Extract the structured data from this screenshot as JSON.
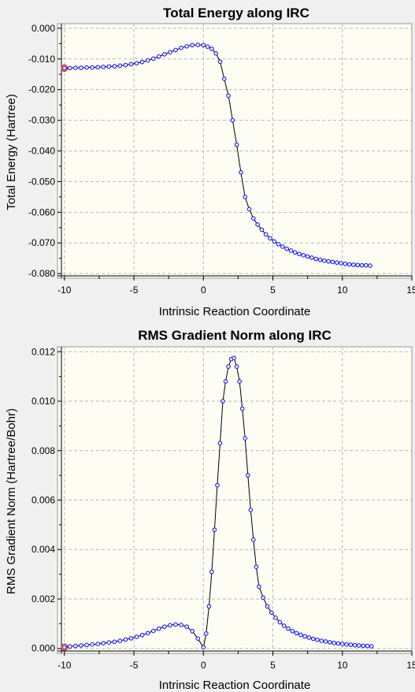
{
  "chart_data": [
    {
      "type": "line",
      "title": "Total Energy along IRC",
      "xlabel": "Intrinsic Reaction Coordinate",
      "ylabel": "Total Energy (Hartree)",
      "xlim": [
        -10.5,
        15
      ],
      "ylim": [
        -0.0815,
        0.0015
      ],
      "x_ticks": [
        -10,
        -5,
        0,
        5,
        10,
        15
      ],
      "y_ticks": [
        0.0,
        -0.01,
        -0.02,
        -0.03,
        -0.04,
        -0.05,
        -0.06,
        -0.07,
        -0.08
      ],
      "x_tick_labels": [
        "-10",
        "-5",
        "0",
        "5",
        "10",
        "15"
      ],
      "y_tick_labels": [
        "0.000",
        "-0.010",
        "-0.020",
        "-0.030",
        "-0.040",
        "-0.050",
        "-0.060",
        "-0.070",
        "-0.080"
      ],
      "grid": true,
      "highlighted_point": {
        "x": -10.0,
        "y": -0.013
      },
      "series": [
        {
          "x": [
            -10.0,
            -9.6,
            -9.2,
            -8.8,
            -8.4,
            -8.0,
            -7.6,
            -7.2,
            -6.8,
            -6.4,
            -6.0,
            -5.6,
            -5.2,
            -4.8,
            -4.4,
            -4.0,
            -3.6,
            -3.2,
            -2.8,
            -2.4,
            -2.0,
            -1.6,
            -1.2,
            -0.8,
            -0.4,
            0.0,
            0.3,
            0.6,
            0.9,
            1.2,
            1.5,
            1.8,
            2.1,
            2.4,
            2.7,
            3.0,
            3.3,
            3.6,
            3.9,
            4.2,
            4.5,
            4.8,
            5.1,
            5.4,
            5.7,
            6.0,
            6.3,
            6.6,
            6.9,
            7.2,
            7.5,
            7.8,
            8.1,
            8.4,
            8.7,
            9.0,
            9.3,
            9.6,
            9.9,
            10.2,
            10.5,
            10.8,
            11.1,
            11.4,
            11.7,
            12.0
          ],
          "y": [
            -0.013,
            -0.013,
            -0.0129,
            -0.0129,
            -0.0128,
            -0.0128,
            -0.0127,
            -0.0126,
            -0.0125,
            -0.0124,
            -0.0122,
            -0.012,
            -0.0117,
            -0.0114,
            -0.011,
            -0.0105,
            -0.0099,
            -0.0092,
            -0.0085,
            -0.0078,
            -0.0071,
            -0.0064,
            -0.0059,
            -0.0055,
            -0.0054,
            -0.0055,
            -0.006,
            -0.0067,
            -0.0082,
            -0.0109,
            -0.0165,
            -0.022,
            -0.03,
            -0.038,
            -0.047,
            -0.055,
            -0.059,
            -0.062,
            -0.064,
            -0.0657,
            -0.0672,
            -0.0685,
            -0.0695,
            -0.0704,
            -0.0712,
            -0.0719,
            -0.0725,
            -0.0731,
            -0.0736,
            -0.074,
            -0.0744,
            -0.0748,
            -0.0752,
            -0.0755,
            -0.0758,
            -0.076,
            -0.0762,
            -0.0764,
            -0.0766,
            -0.0768,
            -0.077,
            -0.0771,
            -0.0772,
            -0.0773,
            -0.0773,
            -0.0774
          ]
        }
      ]
    },
    {
      "type": "line",
      "title": "RMS Gradient Norm along IRC",
      "xlabel": "Intrinsic Reaction Coordinate",
      "ylabel": "RMS Gradient Norm (Hartree/Bohr)",
      "xlim": [
        -10.5,
        15
      ],
      "ylim": [
        -0.0002,
        0.0122
      ],
      "x_ticks": [
        -10,
        -5,
        0,
        5,
        10,
        15
      ],
      "y_ticks": [
        0.0,
        0.002,
        0.004,
        0.006,
        0.008,
        0.01,
        0.012
      ],
      "x_tick_labels": [
        "-10",
        "-5",
        "0",
        "5",
        "10",
        "15"
      ],
      "y_tick_labels": [
        "0.000",
        "0.002",
        "0.004",
        "0.006",
        "0.008",
        "0.010",
        "0.012"
      ],
      "grid": true,
      "highlighted_point": {
        "x": -10.0,
        "y": 5e-05
      },
      "series": [
        {
          "x": [
            -10.0,
            -9.6,
            -9.2,
            -8.8,
            -8.4,
            -8.0,
            -7.6,
            -7.2,
            -6.8,
            -6.4,
            -6.0,
            -5.6,
            -5.2,
            -4.8,
            -4.4,
            -4.0,
            -3.6,
            -3.2,
            -2.8,
            -2.4,
            -2.0,
            -1.6,
            -1.2,
            -0.8,
            -0.4,
            0.0,
            0.2,
            0.4,
            0.6,
            0.8,
            1.0,
            1.2,
            1.4,
            1.6,
            1.8,
            2.0,
            2.2,
            2.4,
            2.6,
            2.8,
            3.0,
            3.2,
            3.4,
            3.6,
            3.8,
            4.0,
            4.3,
            4.6,
            4.9,
            5.2,
            5.5,
            5.8,
            6.1,
            6.4,
            6.7,
            7.0,
            7.3,
            7.6,
            7.9,
            8.2,
            8.5,
            8.8,
            9.1,
            9.4,
            9.7,
            10.0,
            10.3,
            10.6,
            10.9,
            11.2,
            11.5,
            11.8,
            12.1
          ],
          "y": [
            5e-05,
            8e-05,
            0.0001,
            0.00012,
            0.00014,
            0.00016,
            0.00018,
            0.00021,
            0.00024,
            0.00027,
            0.00031,
            0.00036,
            0.00041,
            0.00047,
            0.00054,
            0.00062,
            0.00071,
            0.0008,
            0.00088,
            0.00094,
            0.00097,
            0.00095,
            0.00088,
            0.0007,
            0.0004,
            5e-05,
            0.0006,
            0.0017,
            0.0031,
            0.0048,
            0.0066,
            0.0083,
            0.01,
            0.0108,
            0.0114,
            0.0117,
            0.01175,
            0.0114,
            0.0108,
            0.0097,
            0.0085,
            0.007,
            0.0056,
            0.0044,
            0.0033,
            0.0025,
            0.00205,
            0.0017,
            0.00145,
            0.00124,
            0.00106,
            0.00092,
            0.0008,
            0.0007,
            0.00062,
            0.00055,
            0.00049,
            0.00044,
            0.00039,
            0.00035,
            0.00031,
            0.00028,
            0.00025,
            0.00022,
            0.0002,
            0.00018,
            0.00016,
            0.00015,
            0.00013,
            0.00012,
            0.00011,
            0.0001,
            9e-05
          ]
        }
      ]
    }
  ]
}
